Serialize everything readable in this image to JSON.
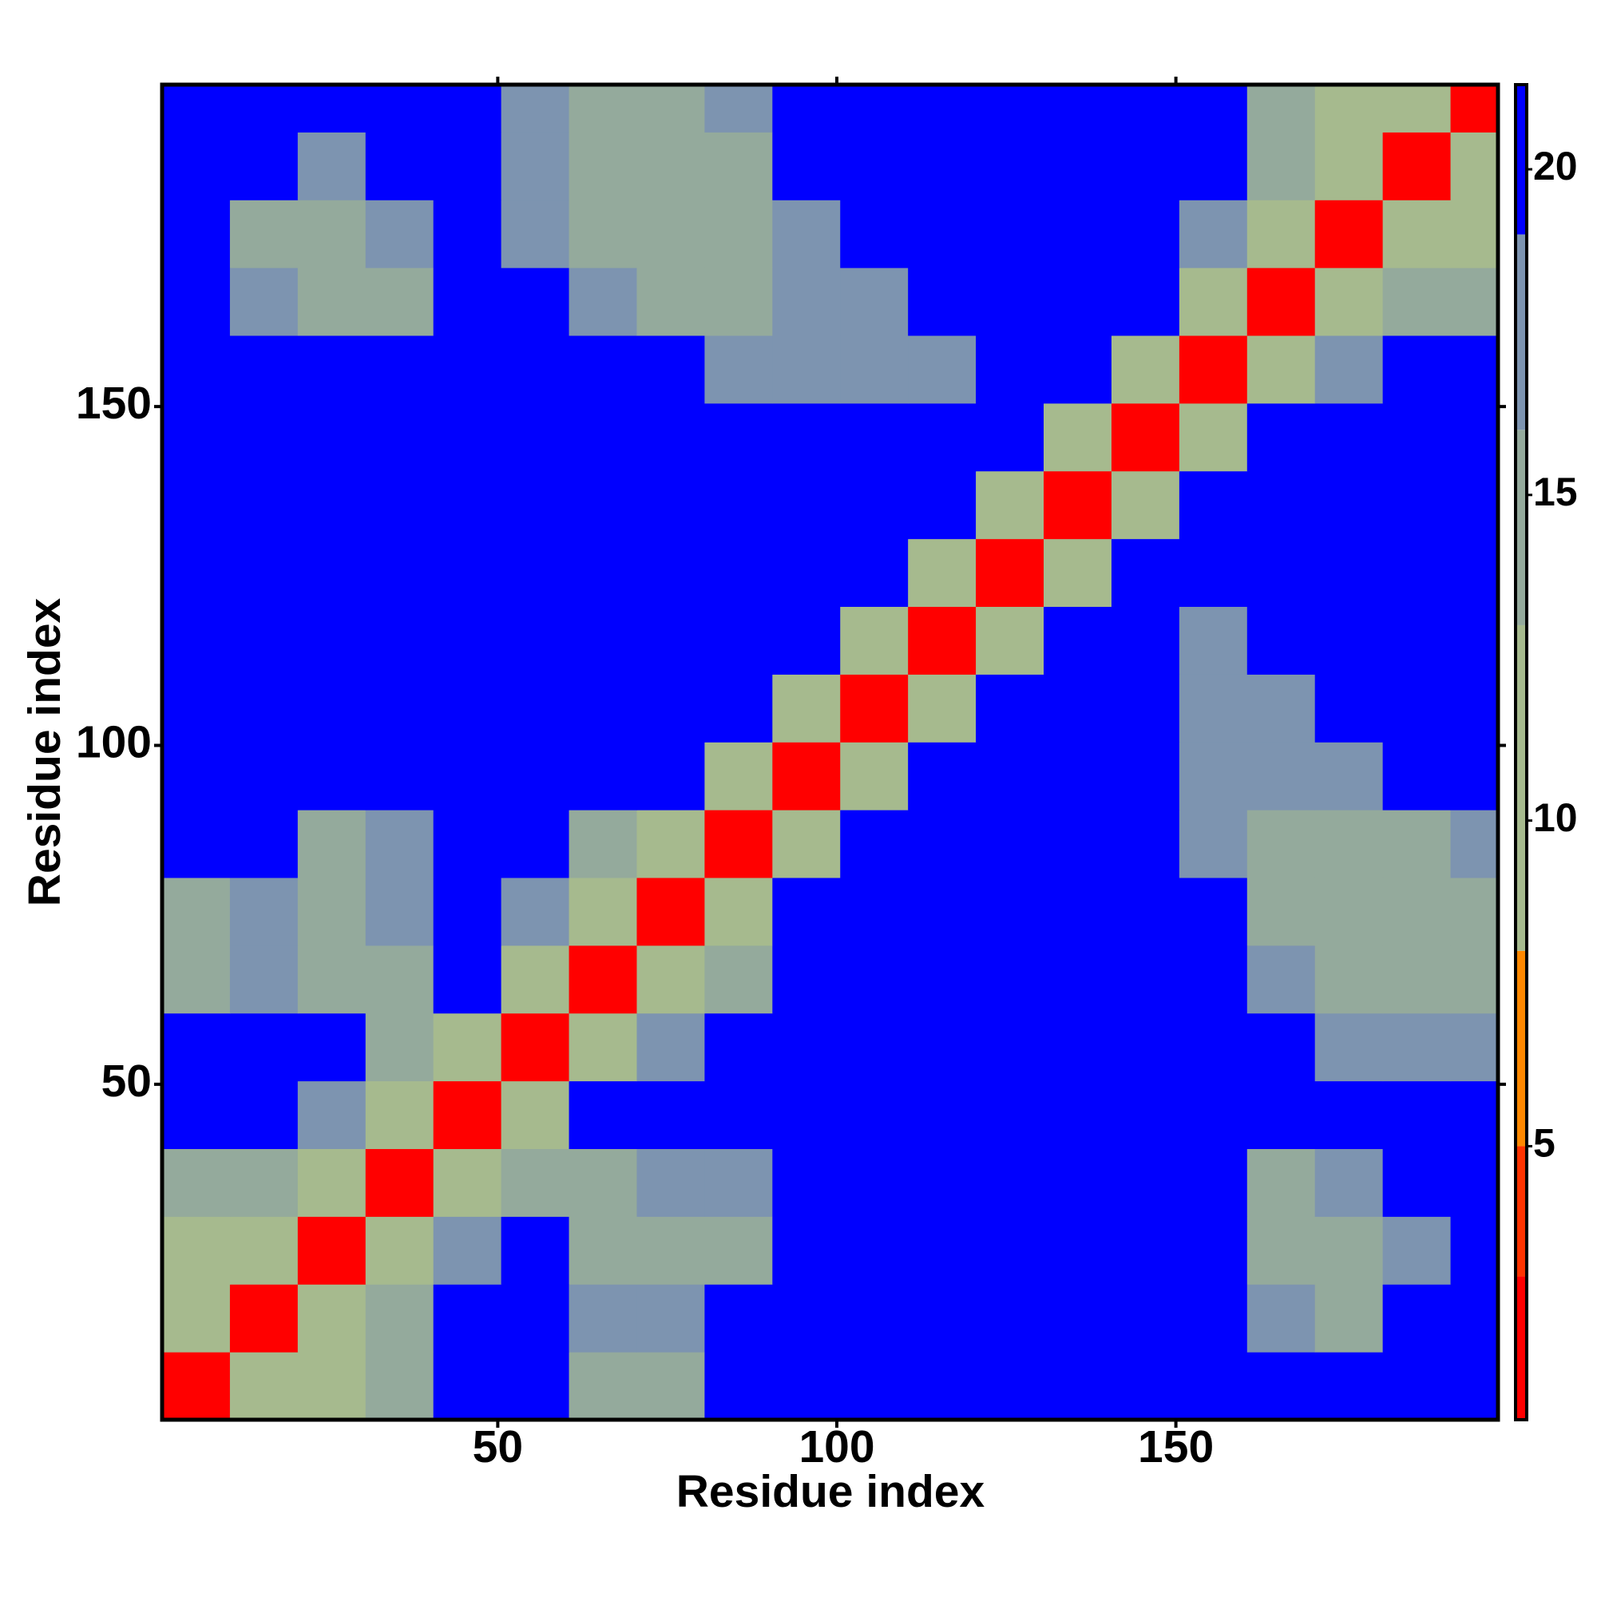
{
  "chart_data": {
    "type": "heatmap",
    "xlabel": "Residue index",
    "ylabel": "Residue index",
    "xlim": [
      0.5,
      197.5
    ],
    "ylim": [
      0.5,
      197.5
    ],
    "xticks": [
      50,
      100,
      150
    ],
    "yticks": [
      50,
      100,
      150
    ],
    "xbins": [
      0.5,
      10.5,
      20.5,
      30.5,
      40.5,
      50.5,
      60.5,
      70.5,
      80.5,
      90.5,
      100.5,
      110.5,
      120.5,
      130.5,
      140.5,
      150.5,
      160.5,
      170.5,
      180.5,
      190.5,
      197.5
    ],
    "ybins": [
      0.5,
      10.5,
      20.5,
      30.5,
      40.5,
      50.5,
      60.5,
      70.5,
      80.5,
      90.5,
      100.5,
      110.5,
      120.5,
      130.5,
      140.5,
      150.5,
      160.5,
      170.5,
      180.5,
      190.5,
      197.5
    ],
    "values": [
      [
        3,
        12,
        13,
        15,
        21,
        21,
        15,
        15,
        21,
        21,
        21,
        21,
        21,
        21,
        21,
        21,
        21,
        21,
        21,
        21
      ],
      [
        12,
        3,
        12,
        15,
        21,
        21,
        18,
        17,
        21,
        21,
        21,
        21,
        21,
        21,
        21,
        21,
        18,
        16,
        20,
        21
      ],
      [
        13,
        12,
        3,
        12,
        18,
        21,
        14,
        14,
        15,
        21,
        21,
        21,
        21,
        21,
        21,
        21,
        14,
        15,
        18,
        21
      ],
      [
        15,
        15,
        12,
        3,
        12,
        15,
        14,
        17,
        18,
        21,
        21,
        21,
        21,
        21,
        21,
        21,
        16,
        17,
        21,
        21
      ],
      [
        21,
        21,
        18,
        12,
        3,
        12,
        21,
        21,
        21,
        21,
        21,
        21,
        21,
        21,
        21,
        21,
        21,
        21,
        21,
        21
      ],
      [
        21,
        21,
        21,
        15,
        12,
        3,
        12,
        17,
        21,
        21,
        21,
        21,
        21,
        21,
        21,
        21,
        21,
        18,
        17,
        18
      ],
      [
        15,
        18,
        14,
        14,
        21,
        12,
        3,
        12,
        15,
        21,
        21,
        21,
        21,
        21,
        21,
        21,
        17,
        15,
        14,
        15
      ],
      [
        15,
        17,
        14,
        17,
        21,
        17,
        12,
        3,
        12,
        21,
        21,
        21,
        21,
        21,
        21,
        21,
        16,
        15,
        14,
        14
      ],
      [
        21,
        21,
        15,
        18,
        21,
        21,
        15,
        12,
        3,
        12,
        21,
        21,
        21,
        21,
        21,
        18,
        15,
        15,
        16,
        17
      ],
      [
        21,
        21,
        21,
        21,
        21,
        21,
        21,
        21,
        12,
        3,
        12,
        21,
        21,
        21,
        21,
        18,
        17,
        19,
        21,
        21
      ],
      [
        21,
        21,
        21,
        21,
        21,
        21,
        21,
        21,
        21,
        12,
        3,
        12,
        21,
        21,
        21,
        17,
        19,
        21,
        21,
        21
      ],
      [
        21,
        21,
        21,
        21,
        21,
        21,
        21,
        21,
        21,
        21,
        12,
        3,
        12,
        21,
        21,
        19,
        21,
        21,
        21,
        21
      ],
      [
        21,
        21,
        21,
        21,
        21,
        21,
        21,
        21,
        21,
        21,
        21,
        12,
        3,
        12,
        21,
        21,
        21,
        21,
        21,
        21
      ],
      [
        21,
        21,
        21,
        21,
        21,
        21,
        21,
        21,
        21,
        21,
        21,
        21,
        12,
        3,
        12,
        21,
        21,
        21,
        21,
        21
      ],
      [
        21,
        21,
        21,
        21,
        21,
        21,
        21,
        21,
        21,
        21,
        21,
        21,
        21,
        12,
        3,
        12,
        21,
        21,
        21,
        21
      ],
      [
        21,
        21,
        21,
        21,
        21,
        21,
        21,
        21,
        18,
        18,
        17,
        19,
        21,
        21,
        12,
        3,
        12,
        18,
        21,
        21
      ],
      [
        21,
        18,
        14,
        16,
        21,
        21,
        17,
        16,
        15,
        17,
        19,
        21,
        21,
        21,
        21,
        12,
        3,
        12,
        14,
        15
      ],
      [
        21,
        16,
        15,
        17,
        21,
        18,
        15,
        15,
        15,
        19,
        21,
        21,
        21,
        21,
        21,
        18,
        12,
        3,
        12,
        13
      ],
      [
        21,
        20,
        18,
        21,
        21,
        17,
        14,
        14,
        16,
        21,
        21,
        21,
        21,
        21,
        21,
        21,
        14,
        12,
        3,
        12
      ],
      [
        21,
        21,
        21,
        21,
        21,
        18,
        15,
        14,
        17,
        21,
        21,
        21,
        21,
        21,
        21,
        21,
        15,
        13,
        12,
        3
      ]
    ],
    "zlim": [
      0.8,
      21.3
    ],
    "zticks": [
      5,
      10,
      15,
      20
    ],
    "colorscale": [
      [
        3,
        "#ff0000"
      ],
      [
        5,
        "#ff3300"
      ],
      [
        8,
        "#ff8800"
      ],
      [
        13,
        "#a6ba8e"
      ],
      [
        16,
        "#94aa9c"
      ],
      [
        19,
        "#7d94b0"
      ],
      [
        21.3,
        "#0000ff"
      ]
    ]
  }
}
